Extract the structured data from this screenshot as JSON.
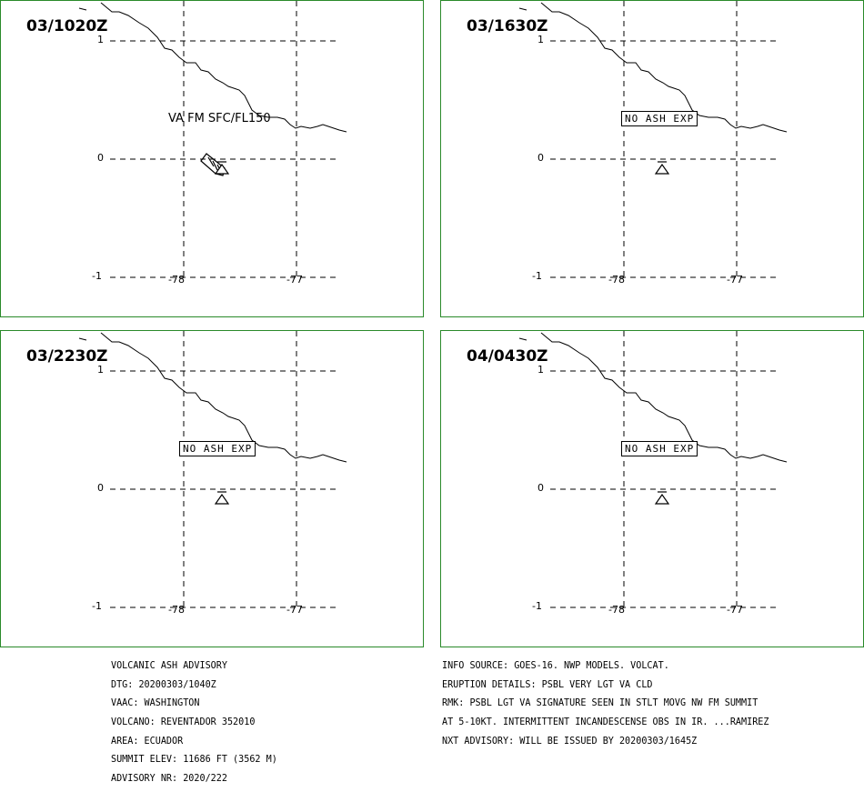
{
  "panels": [
    {
      "time": "03/1020Z",
      "label": "VA FM SFC/FL150",
      "label_type": "ash"
    },
    {
      "time": "03/1630Z",
      "label": "NO ASH EXP",
      "label_type": "none"
    },
    {
      "time": "03/2230Z",
      "label": "NO ASH EXP",
      "label_type": "none"
    },
    {
      "time": "04/0430Z",
      "label": "NO ASH EXP",
      "label_type": "none"
    }
  ],
  "axes": {
    "lat_ticks": [
      "1",
      "0",
      "-1"
    ],
    "lon_ticks": [
      "-78",
      "-77"
    ]
  },
  "advisory_left": [
    "VOLCANIC ASH ADVISORY",
    "DTG: 20200303/1040Z",
    "VAAC: WASHINGTON",
    "VOLCANO: REVENTADOR 352010",
    "AREA: ECUADOR",
    "SUMMIT ELEV: 11686 FT (3562 M)",
    "ADVISORY NR: 2020/222"
  ],
  "advisory_right": [
    "INFO SOURCE: GOES-16. NWP MODELS. VOLCAT.",
    "ERUPTION DETAILS: PSBL VERY LGT VA CLD",
    "RMK: PSBL LGT VA SIGNATURE SEEN IN STLT MOVG NW FM SUMMIT",
    "AT 5-10KT. INTERMITTENT INCANDESCENSE OBS IN IR. ...RAMIREZ",
    "NXT ADVISORY: WILL BE ISSUED BY 20200303/1645Z"
  ],
  "colors": {
    "frame": "#2a8a2a"
  }
}
